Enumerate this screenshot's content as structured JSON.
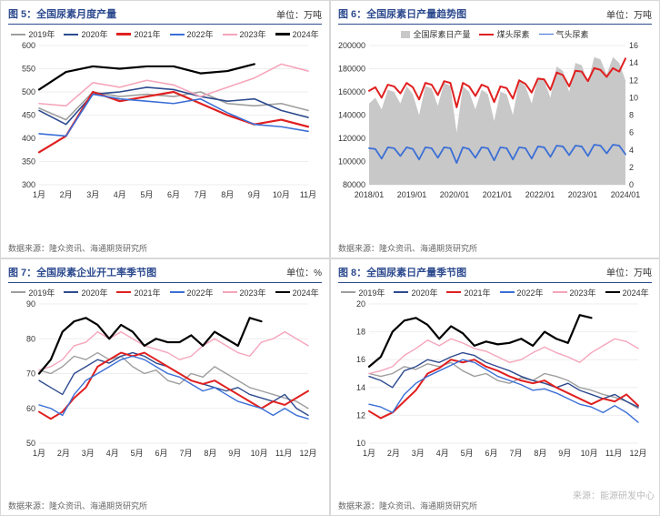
{
  "colors": {
    "title": "#2e4b8f",
    "grid": "#eeeeee",
    "axis_text": "#333333",
    "y2019": "#9e9e9e",
    "y2020": "#2e4b8f",
    "y2021": "#e02020",
    "y2022": "#3b6fd6",
    "y2023": "#f5a5bb",
    "y2024": "#000000",
    "bar_fill": "#c8c8c8",
    "coal": "#e02020",
    "gas": "#3b6fd6"
  },
  "charts": [
    {
      "id": "c5",
      "title_prefix": "图 5：",
      "title_text": "全国尿素月度产量",
      "unit": "单位：万吨",
      "source": "数据来源：隆众资讯、海通期货研究所",
      "legend_keys": [
        "y2019",
        "y2020",
        "y2021",
        "y2022",
        "y2023",
        "y2024"
      ],
      "legend_labels": [
        "2019年",
        "2020年",
        "2021年",
        "2022年",
        "2023年",
        "2024年"
      ],
      "x_labels": [
        "1月",
        "2月",
        "3月",
        "4月",
        "5月",
        "6月",
        "7月",
        "8月",
        "9月",
        "10月",
        "11月"
      ],
      "ylim": [
        300,
        600
      ],
      "ytick_step": 50,
      "series": {
        "y2019": [
          465,
          440,
          500,
          490,
          495,
          490,
          500,
          475,
          470,
          475,
          460
        ],
        "y2020": [
          460,
          430,
          495,
          500,
          510,
          505,
          490,
          480,
          485,
          460,
          445
        ],
        "y2021": [
          370,
          405,
          500,
          480,
          490,
          500,
          475,
          450,
          430,
          440,
          425
        ],
        "y2022": [
          410,
          405,
          495,
          485,
          480,
          475,
          485,
          455,
          430,
          425,
          415
        ],
        "y2023": [
          475,
          470,
          520,
          510,
          525,
          515,
          490,
          510,
          530,
          560,
          545
        ],
        "y2024": [
          505,
          543,
          555,
          550,
          555,
          555,
          540,
          545,
          560,
          null,
          null
        ]
      },
      "line_width": {
        "y2021": 2.2,
        "y2024": 2.2,
        "default": 1.6
      }
    },
    {
      "id": "c6",
      "title_prefix": "图 6：",
      "title_text": "全国尿素日产量趋势图",
      "unit": "单位：万吨",
      "source": "数据来源：隆众资讯、海通期货研究所",
      "legend_keys": [
        "bar_fill",
        "coal",
        "gas"
      ],
      "legend_labels": [
        "全国尿素日产量",
        "煤头尿素",
        "气头尿素"
      ],
      "legend_style": [
        "block",
        "line",
        "line"
      ],
      "x_labels": [
        "2018/01",
        "2019/01",
        "2020/01",
        "2021/01",
        "2022/01",
        "2023/01",
        "2024/01"
      ],
      "ylim": [
        80000,
        200000
      ],
      "ytick_step": 20000,
      "y2lim": [
        0,
        16
      ],
      "y2tick_step": 2,
      "area_series": "total",
      "line_series_y2": [
        "coal",
        "gas"
      ],
      "series": {
        "total": [
          150000,
          155000,
          145000,
          162000,
          160000,
          150000,
          165000,
          158000,
          140000,
          165000,
          163000,
          148000,
          168000,
          165000,
          125000,
          165000,
          160000,
          145000,
          162000,
          158000,
          135000,
          160000,
          158000,
          140000,
          170000,
          165000,
          150000,
          172000,
          170000,
          155000,
          182000,
          178000,
          160000,
          185000,
          183000,
          168000,
          190000,
          188000,
          175000,
          190000,
          185000,
          170000
        ],
        "coal": [
          10.8,
          11.2,
          10.0,
          11.5,
          11.3,
          10.5,
          11.7,
          11.2,
          9.8,
          11.7,
          11.5,
          10.3,
          11.9,
          11.7,
          8.9,
          11.7,
          11.3,
          10.2,
          11.5,
          11.2,
          9.5,
          11.3,
          11.1,
          9.9,
          12.0,
          11.6,
          10.6,
          12.2,
          12.1,
          10.9,
          12.9,
          12.6,
          11.3,
          13.1,
          13.0,
          11.9,
          13.4,
          13.2,
          12.4,
          13.4,
          13.0,
          14.5
        ],
        "gas": [
          4.2,
          4.1,
          3.0,
          4.3,
          4.2,
          3.3,
          4.3,
          4.1,
          2.9,
          4.3,
          4.2,
          3.1,
          4.3,
          4.2,
          2.5,
          4.3,
          4.1,
          3.1,
          4.3,
          4.2,
          2.8,
          4.3,
          4.2,
          2.9,
          4.3,
          4.2,
          3.0,
          4.4,
          4.3,
          3.2,
          4.5,
          4.4,
          3.4,
          4.5,
          4.4,
          3.3,
          4.6,
          4.5,
          3.6,
          4.6,
          4.5,
          3.5
        ]
      },
      "line_width": {
        "coal": 2.0,
        "gas": 1.8
      }
    },
    {
      "id": "c7",
      "title_prefix": "图 7：",
      "title_text": "全国尿素企业开工率季节图",
      "unit": "单位：%",
      "source": "数据来源：隆众资讯、海通期货研究所",
      "legend_keys": [
        "y2019",
        "y2020",
        "y2021",
        "y2022",
        "y2023",
        "y2024"
      ],
      "legend_labels": [
        "2019年",
        "2020年",
        "2021年",
        "2022年",
        "2023年",
        "2024年"
      ],
      "x_labels": [
        "1月",
        "2月",
        "3月",
        "4月",
        "5月",
        "6月",
        "7月",
        "8月",
        "9月",
        "10月",
        "11月",
        "12月"
      ],
      "ylim": [
        50,
        90
      ],
      "ytick_step": 10,
      "series": {
        "y2019": [
          71,
          70,
          72,
          75,
          74,
          76,
          74,
          75,
          72,
          70,
          71,
          68,
          67,
          70,
          69,
          72,
          70,
          68,
          66,
          65,
          64,
          63,
          62,
          60
        ],
        "y2020": [
          68,
          66,
          64,
          70,
          72,
          74,
          73,
          75,
          76,
          75,
          73,
          72,
          70,
          68,
          67,
          66,
          65,
          66,
          64,
          63,
          62,
          64,
          60,
          58
        ],
        "y2021": [
          59,
          57,
          59,
          63,
          66,
          72,
          74,
          76,
          75,
          76,
          74,
          72,
          70,
          68,
          67,
          68,
          66,
          64,
          62,
          60,
          62,
          61,
          63,
          65
        ],
        "y2022": [
          61,
          60,
          58,
          64,
          68,
          70,
          72,
          74,
          75,
          74,
          72,
          70,
          69,
          67,
          65,
          66,
          64,
          62,
          61,
          60,
          58,
          60,
          58,
          57
        ],
        "y2023": [
          71,
          72,
          74,
          78,
          79,
          82,
          80,
          82,
          80,
          78,
          77,
          76,
          74,
          75,
          78,
          80,
          78,
          76,
          75,
          79,
          80,
          82,
          80,
          78
        ],
        "y2024": [
          70,
          74,
          82,
          85,
          86,
          84,
          80,
          84,
          82,
          78,
          80,
          79,
          79,
          81,
          78,
          82,
          80,
          78,
          86,
          85,
          null,
          null,
          null,
          null
        ]
      },
      "line_width": {
        "y2021": 2.0,
        "y2024": 2.2,
        "default": 1.4
      }
    },
    {
      "id": "c8",
      "title_prefix": "图 8：",
      "title_text": "全国尿素日产量季节图",
      "unit": "单位：万吨",
      "source": "数据来源：隆众资讯、海通期货研究所",
      "legend_keys": [
        "y2019",
        "y2020",
        "y2021",
        "y2022",
        "y2023",
        "y2024"
      ],
      "legend_labels": [
        "2019年",
        "2020年",
        "2021年",
        "2022年",
        "2023年",
        "2024年"
      ],
      "x_labels": [
        "1月",
        "2月",
        "3月",
        "4月",
        "5月",
        "6月",
        "7月",
        "8月",
        "9月",
        "10月",
        "11月",
        "12月"
      ],
      "ylim": [
        10,
        20
      ],
      "ytick_step": 2,
      "series": {
        "y2019": [
          15.0,
          14.8,
          15.0,
          15.5,
          15.3,
          15.7,
          15.5,
          15.8,
          15.2,
          14.8,
          15.0,
          14.5,
          14.3,
          14.7,
          14.5,
          15.0,
          14.8,
          14.5,
          14.0,
          13.8,
          13.5,
          13.3,
          13.0,
          12.5
        ],
        "y2020": [
          14.8,
          14.5,
          14.0,
          15.2,
          15.5,
          16.0,
          15.8,
          16.2,
          16.5,
          16.3,
          15.8,
          15.5,
          15.2,
          14.8,
          14.5,
          14.3,
          14.0,
          14.3,
          13.8,
          13.5,
          13.2,
          13.5,
          13.0,
          12.6
        ],
        "y2021": [
          12.3,
          11.8,
          12.2,
          13.0,
          13.8,
          15.0,
          15.4,
          16.0,
          15.8,
          16.0,
          15.5,
          15.2,
          14.8,
          14.5,
          14.3,
          14.5,
          14.0,
          13.6,
          13.2,
          12.8,
          13.2,
          13.0,
          13.5,
          12.7
        ],
        "y2022": [
          12.8,
          12.6,
          12.2,
          13.5,
          14.3,
          14.8,
          15.2,
          15.6,
          16.0,
          15.8,
          15.3,
          14.8,
          14.5,
          14.2,
          13.8,
          13.9,
          13.6,
          13.2,
          12.8,
          12.6,
          12.2,
          12.7,
          12.2,
          11.5
        ],
        "y2023": [
          15.0,
          15.2,
          15.5,
          16.3,
          16.8,
          17.4,
          17.0,
          17.5,
          17.2,
          16.8,
          16.6,
          16.2,
          15.8,
          16.0,
          16.5,
          16.9,
          16.5,
          16.2,
          15.8,
          16.5,
          17.0,
          17.5,
          17.3,
          16.8
        ],
        "y2024": [
          15.5,
          16.2,
          18.0,
          18.8,
          19.0,
          18.5,
          17.5,
          18.4,
          17.9,
          17.0,
          17.3,
          17.1,
          17.2,
          17.5,
          17.0,
          18.0,
          17.5,
          17.2,
          19.2,
          19.0,
          null,
          null,
          null,
          null
        ]
      },
      "line_width": {
        "y2021": 2.0,
        "y2024": 2.2,
        "default": 1.4
      }
    }
  ],
  "watermark": "来源：能源研发中心"
}
